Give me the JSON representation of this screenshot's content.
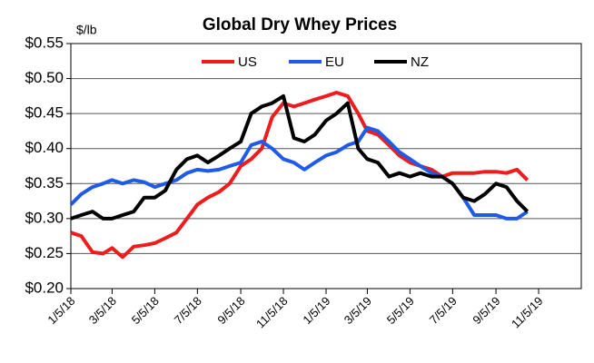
{
  "chart_data": {
    "type": "line",
    "title": "Global Dry Whey Prices",
    "y_unit_label": "$/lb",
    "x": [
      "1/5/18",
      "1/20/18",
      "2/5/18",
      "2/20/18",
      "3/5/18",
      "3/20/18",
      "4/5/18",
      "4/20/18",
      "5/5/18",
      "5/20/18",
      "6/5/18",
      "6/20/18",
      "7/5/18",
      "7/20/18",
      "8/5/18",
      "8/20/18",
      "9/5/18",
      "9/20/18",
      "10/5/18",
      "10/20/18",
      "11/5/18",
      "11/20/18",
      "12/5/18",
      "12/20/18",
      "1/5/19",
      "1/20/19",
      "2/5/19",
      "2/20/19",
      "3/5/19",
      "3/20/19",
      "4/5/19",
      "4/20/19",
      "5/5/19",
      "5/20/19",
      "6/5/19",
      "6/20/19",
      "7/5/19",
      "7/20/19",
      "8/5/19",
      "8/20/19",
      "9/5/19",
      "9/20/19",
      "10/5/19",
      "10/20/19"
    ],
    "series": [
      {
        "name": "US",
        "color": "#ee1c1c",
        "values": [
          0.28,
          0.275,
          0.252,
          0.25,
          0.258,
          0.245,
          0.26,
          0.262,
          0.265,
          0.272,
          0.28,
          0.3,
          0.32,
          0.33,
          0.338,
          0.35,
          0.375,
          0.385,
          0.4,
          0.445,
          0.465,
          0.46,
          0.465,
          0.47,
          0.475,
          0.48,
          0.475,
          0.45,
          0.425,
          0.42,
          0.405,
          0.39,
          0.38,
          0.375,
          0.37,
          0.36,
          0.365,
          0.365,
          0.365,
          0.367,
          0.367,
          0.365,
          0.37,
          0.355
        ]
      },
      {
        "name": "EU",
        "color": "#1f5be6",
        "values": [
          0.32,
          0.335,
          0.345,
          0.35,
          0.355,
          0.35,
          0.355,
          0.352,
          0.345,
          0.35,
          0.355,
          0.365,
          0.37,
          0.368,
          0.37,
          0.375,
          0.38,
          0.405,
          0.41,
          0.4,
          0.385,
          0.38,
          0.37,
          0.38,
          0.39,
          0.395,
          0.405,
          0.41,
          0.43,
          0.425,
          0.41,
          0.395,
          0.385,
          0.375,
          0.365,
          0.36,
          0.35,
          0.33,
          0.305,
          0.305,
          0.305,
          0.3,
          0.3,
          0.31
        ]
      },
      {
        "name": "NZ",
        "color": "#000000",
        "values": [
          0.3,
          0.305,
          0.31,
          0.3,
          0.3,
          0.305,
          0.31,
          0.33,
          0.33,
          0.34,
          0.37,
          0.385,
          0.39,
          0.38,
          0.39,
          0.4,
          0.41,
          0.45,
          0.46,
          0.465,
          0.475,
          0.415,
          0.41,
          0.42,
          0.44,
          0.45,
          0.465,
          0.4,
          0.385,
          0.38,
          0.36,
          0.365,
          0.36,
          0.365,
          0.36,
          0.36,
          0.35,
          0.33,
          0.325,
          0.335,
          0.35,
          0.345,
          0.325,
          0.31
        ]
      }
    ],
    "xlim": [
      "1/5/18",
      "1/5/20"
    ],
    "xticks": [
      "1/5/18",
      "3/5/18",
      "5/5/18",
      "7/5/18",
      "9/5/18",
      "11/5/18",
      "1/5/19",
      "3/5/19",
      "5/5/19",
      "7/5/19",
      "9/5/19",
      "11/5/19"
    ],
    "ylim": [
      0.2,
      0.55
    ],
    "yticks": [
      {
        "value": 0.2,
        "label": "$0.20"
      },
      {
        "value": 0.25,
        "label": "$0.25"
      },
      {
        "value": 0.3,
        "label": "$0.30"
      },
      {
        "value": 0.35,
        "label": "$0.35"
      },
      {
        "value": 0.4,
        "label": "$0.40"
      },
      {
        "value": 0.45,
        "label": "$0.45"
      },
      {
        "value": 0.5,
        "label": "$0.50"
      },
      {
        "value": 0.55,
        "label": "$0.55"
      }
    ],
    "grid": true
  }
}
